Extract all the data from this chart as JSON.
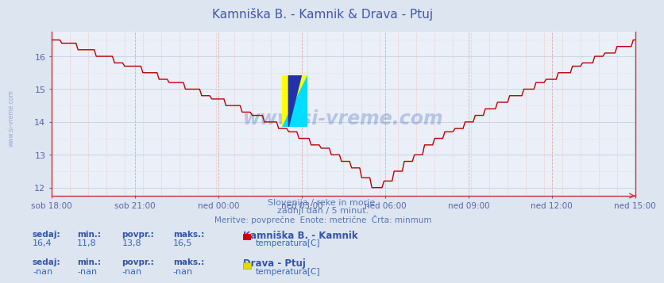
{
  "title": "Kamniška B. - Kamnik & Drava - Ptuj",
  "title_color": "#4455aa",
  "bg_color": "#dde5f0",
  "plot_bg_color": "#eaeff8",
  "line_color": "#bb0000",
  "line_width": 1.0,
  "ylim_min": 11.75,
  "ylim_max": 16.75,
  "yticks": [
    12,
    13,
    14,
    15,
    16
  ],
  "tick_label_color": "#5566aa",
  "xtick_labels": [
    "sob 18:00",
    "sob 21:00",
    "ned 00:00",
    "ned 03:00",
    "ned 06:00",
    "ned 09:00",
    "ned 12:00",
    "ned 15:00"
  ],
  "n_points": 289,
  "watermark_text": "www.si-vreme.com",
  "watermark_color": "#4466bb",
  "watermark_alpha": 0.3,
  "subtitle1": "Slovenija / reke in morje.",
  "subtitle2": "zadnji dan / 5 minut.",
  "subtitle3": "Meritve: povprečne  Enote: metrične  Črta: minmum",
  "subtitle_color": "#5577bb",
  "legend1_title": "Kamniška B. - Kamnik",
  "legend1_label": "temperatura[C]",
  "legend1_color": "#cc0000",
  "legend2_title": "Drava - Ptuj",
  "legend2_label": "temperatura[C]",
  "legend2_color": "#dddd00",
  "stat_headers": [
    "sedaj:",
    "min.:",
    "povpr.:",
    "maks.:"
  ],
  "stats1_vals": [
    "16,4",
    "11,8",
    "13,8",
    "16,5"
  ],
  "stats2_vals": [
    "-nan",
    "-nan",
    "-nan",
    "-nan"
  ],
  "stat_header_color": "#3355aa",
  "stat_val_color": "#3366bb",
  "vgrid_major_color": "#ddaaaa",
  "vgrid_minor_color": "#eecccc",
  "hgrid_major_color": "#c8d0e0",
  "hgrid_minor_color": "#dde4ee",
  "spine_color": "#cc3333",
  "logo_yellow": "#ffff00",
  "logo_cyan": "#00ddff",
  "logo_blue": "#2233aa"
}
